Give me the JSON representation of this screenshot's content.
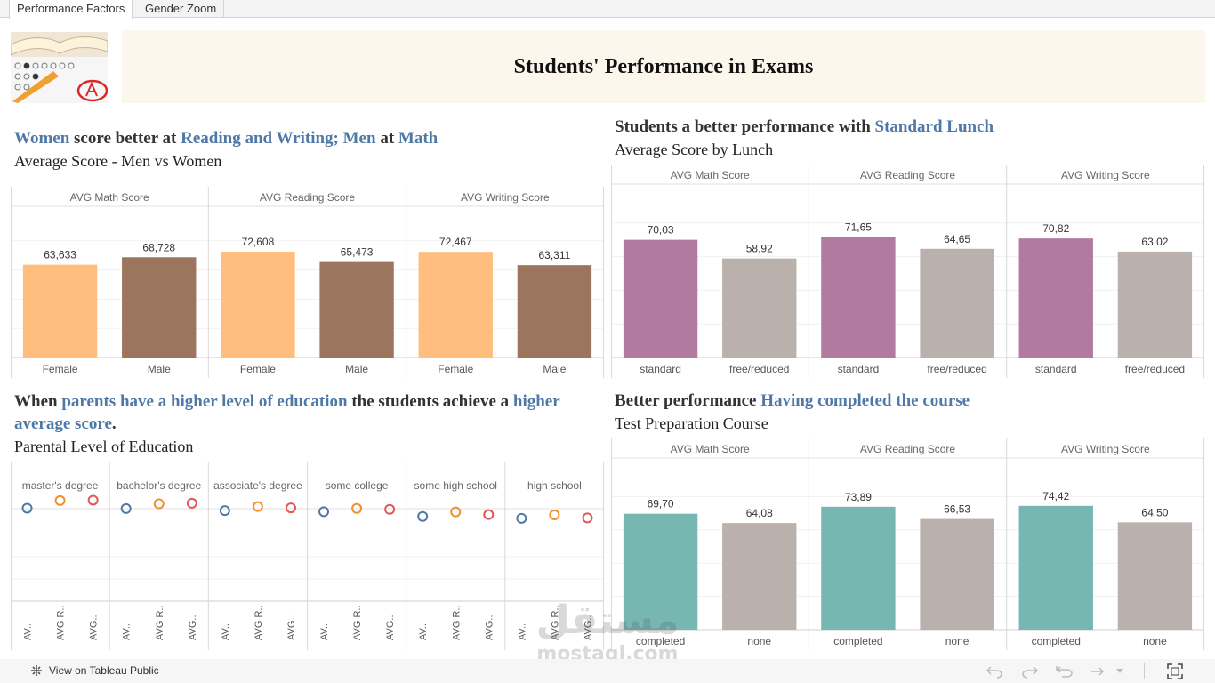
{
  "tabs": [
    {
      "label": "Performance Factors",
      "active": true
    },
    {
      "label": "Gender Zoom",
      "active": false
    }
  ],
  "banner": {
    "title": "Students' Performance in Exams"
  },
  "sections": {
    "gender": {
      "title": [
        [
          "Women",
          true
        ],
        [
          " score better at ",
          false
        ],
        [
          "Reading and Writing; Men",
          true
        ],
        [
          " at ",
          false
        ],
        [
          "Math",
          true
        ]
      ],
      "subtitle": "Average Score - Men vs Women"
    },
    "lunch": {
      "title": [
        [
          "Students a better performance with ",
          false
        ],
        [
          "Standard Lunch",
          true
        ]
      ],
      "subtitle": "Average Score by Lunch"
    },
    "parents": {
      "title": [
        [
          "When ",
          false
        ],
        [
          "parents have a higher level of education",
          true
        ],
        [
          " the students achieve a ",
          false
        ],
        [
          "higher average score",
          true
        ],
        [
          ".",
          false
        ]
      ],
      "subtitle": "Parental Level of Education"
    },
    "prep": {
      "title": [
        [
          "Better performance ",
          false
        ],
        [
          "Having completed the course",
          true
        ]
      ],
      "subtitle": "Test Preparation Course"
    }
  },
  "footer": {
    "link": "View on Tableau Public"
  },
  "watermark": {
    "arabic": "مستقل",
    "latin": "mostaql.com"
  },
  "colors": {
    "female": "#ffbe7d",
    "male": "#9c755f",
    "standard": "#b07aa1",
    "other": "#bab0ac",
    "completed": "#76b7b2",
    "dot_math": "#4e79a7",
    "dot_reading": "#f28e2b",
    "dot_writing": "#e15759",
    "highlight": "#4e79a7"
  },
  "chart_data": [
    {
      "id": "gender",
      "type": "bar",
      "ylim": [
        0,
        100
      ],
      "panels": [
        {
          "header": "AVG Math Score",
          "categories": [
            "Female",
            "Male"
          ],
          "values": [
            63.633,
            68.728
          ],
          "labels": [
            "63,633",
            "68,728"
          ],
          "colors": [
            "female",
            "male"
          ]
        },
        {
          "header": "AVG Reading Score",
          "categories": [
            "Female",
            "Male"
          ],
          "values": [
            72.608,
            65.473
          ],
          "labels": [
            "72,608",
            "65,473"
          ],
          "colors": [
            "female",
            "male"
          ]
        },
        {
          "header": "AVG Writing Score",
          "categories": [
            "Female",
            "Male"
          ],
          "values": [
            72.467,
            63.311
          ],
          "labels": [
            "72,467",
            "63,311"
          ],
          "colors": [
            "female",
            "male"
          ]
        }
      ]
    },
    {
      "id": "lunch",
      "type": "bar",
      "ylim": [
        0,
        100
      ],
      "panels": [
        {
          "header": "AVG Math Score",
          "categories": [
            "standard",
            "free/reduced"
          ],
          "values": [
            70.03,
            58.92
          ],
          "labels": [
            "70,03",
            "58,92"
          ],
          "colors": [
            "standard",
            "other"
          ]
        },
        {
          "header": "AVG Reading Score",
          "categories": [
            "standard",
            "free/reduced"
          ],
          "values": [
            71.65,
            64.65
          ],
          "labels": [
            "71,65",
            "64,65"
          ],
          "colors": [
            "standard",
            "other"
          ]
        },
        {
          "header": "AVG Writing Score",
          "categories": [
            "standard",
            "free/reduced"
          ],
          "values": [
            70.82,
            63.02
          ],
          "labels": [
            "70,82",
            "63,02"
          ],
          "colors": [
            "standard",
            "other"
          ]
        }
      ]
    },
    {
      "id": "prep",
      "type": "bar",
      "ylim": [
        0,
        100
      ],
      "panels": [
        {
          "header": "AVG Math Score",
          "categories": [
            "completed",
            "none"
          ],
          "values": [
            69.7,
            64.08
          ],
          "labels": [
            "69,70",
            "64,08"
          ],
          "colors": [
            "completed",
            "other"
          ]
        },
        {
          "header": "AVG Reading Score",
          "categories": [
            "completed",
            "none"
          ],
          "values": [
            73.89,
            66.53
          ],
          "labels": [
            "73,89",
            "66,53"
          ],
          "colors": [
            "completed",
            "other"
          ]
        },
        {
          "header": "AVG Writing Score",
          "categories": [
            "completed",
            "none"
          ],
          "values": [
            74.42,
            64.5
          ],
          "labels": [
            "74,42",
            "64,50"
          ],
          "colors": [
            "completed",
            "other"
          ]
        }
      ]
    },
    {
      "id": "parents",
      "type": "scatter",
      "ylim": [
        0,
        100
      ],
      "measures": [
        "AV..",
        "AVG R..",
        "AVG.."
      ],
      "measure_colors": [
        "dot_math",
        "dot_reading",
        "dot_writing"
      ],
      "panels": [
        {
          "header": "master's degree",
          "values": [
            69.7,
            75.4,
            75.7
          ]
        },
        {
          "header": "bachelor's degree",
          "values": [
            69.4,
            73.0,
            73.4
          ]
        },
        {
          "header": "associate's degree",
          "values": [
            67.9,
            70.9,
            69.9
          ]
        },
        {
          "header": "some college",
          "values": [
            67.1,
            69.5,
            68.8
          ]
        },
        {
          "header": "some high school",
          "values": [
            63.5,
            66.9,
            64.9
          ]
        },
        {
          "header": "high school",
          "values": [
            62.1,
            64.7,
            62.4
          ]
        }
      ]
    }
  ]
}
